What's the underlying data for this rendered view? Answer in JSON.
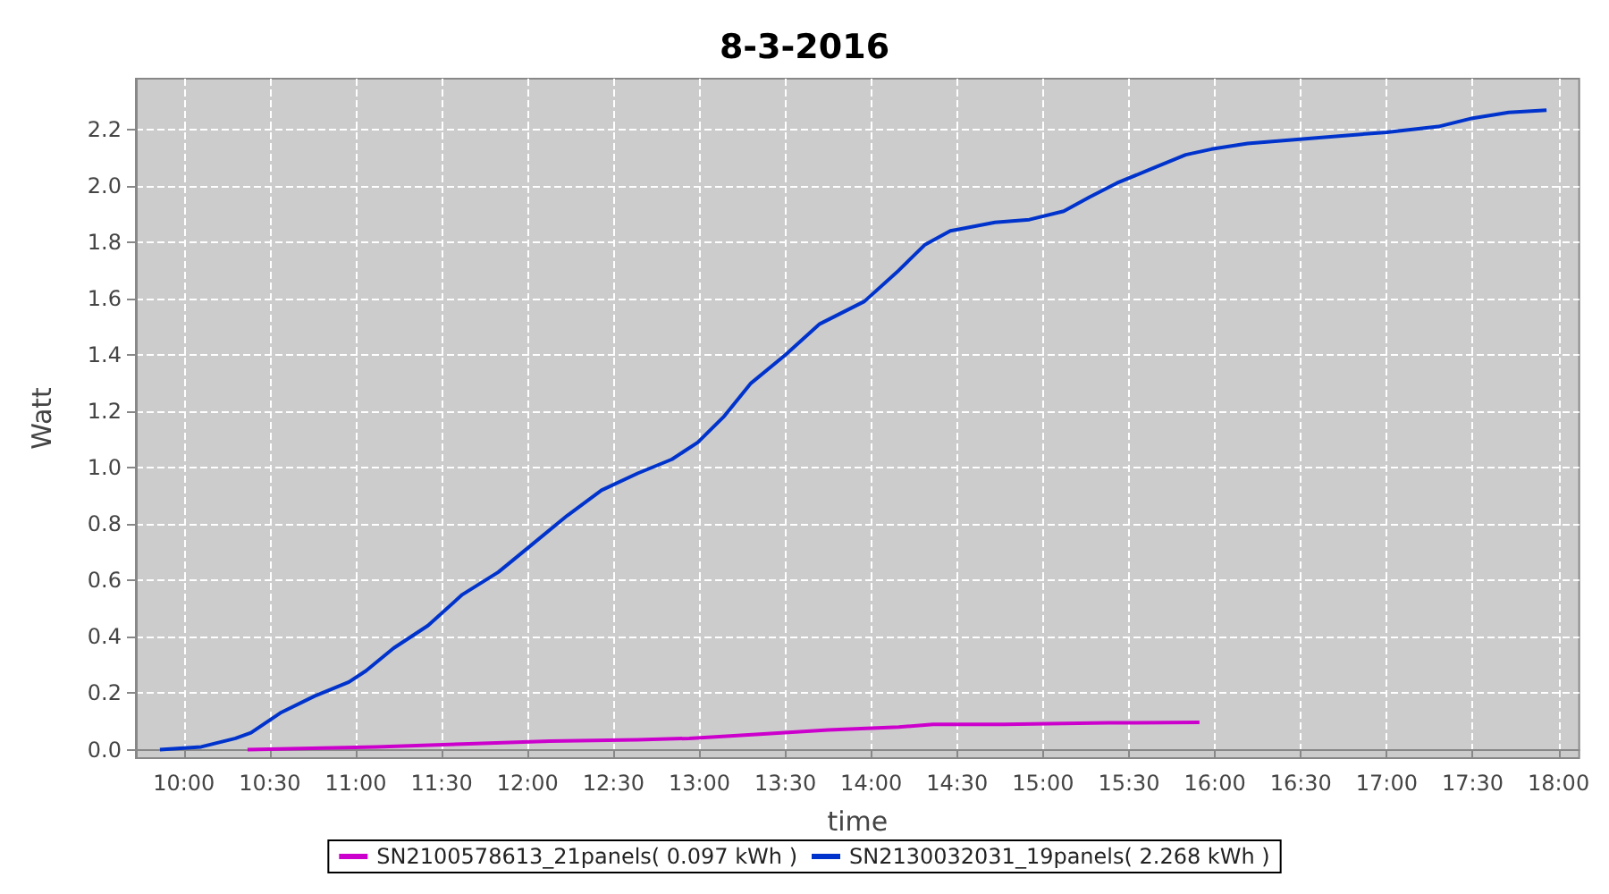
{
  "chart_data": {
    "type": "line",
    "title": "8-3-2016",
    "xlabel": "time",
    "ylabel": "Watt",
    "xlim": [
      9.72,
      18.12
    ],
    "xticks": [
      {
        "value": 10,
        "label": "10:00"
      },
      {
        "value": 10.5,
        "label": "10:30"
      },
      {
        "value": 11,
        "label": "11:00"
      },
      {
        "value": 11.5,
        "label": "11:30"
      },
      {
        "value": 12,
        "label": "12:00"
      },
      {
        "value": 12.5,
        "label": "12:30"
      },
      {
        "value": 13,
        "label": "13:00"
      },
      {
        "value": 13.5,
        "label": "13:30"
      },
      {
        "value": 14,
        "label": "14:00"
      },
      {
        "value": 14.5,
        "label": "14:30"
      },
      {
        "value": 15,
        "label": "15:00"
      },
      {
        "value": 15.5,
        "label": "15:30"
      },
      {
        "value": 16,
        "label": "16:00"
      },
      {
        "value": 16.5,
        "label": "16:30"
      },
      {
        "value": 17,
        "label": "17:00"
      },
      {
        "value": 17.5,
        "label": "17:30"
      },
      {
        "value": 18,
        "label": "18:00"
      }
    ],
    "ylim": [
      -0.03,
      2.38
    ],
    "yticks": [
      {
        "value": 0,
        "label": "0.0"
      },
      {
        "value": 0.2,
        "label": "0.2"
      },
      {
        "value": 0.4,
        "label": "0.4"
      },
      {
        "value": 0.6,
        "label": "0.6"
      },
      {
        "value": 0.8,
        "label": "0.8"
      },
      {
        "value": 1,
        "label": "1.0"
      },
      {
        "value": 1.2,
        "label": "1.2"
      },
      {
        "value": 1.4,
        "label": "1.4"
      },
      {
        "value": 1.6,
        "label": "1.6"
      },
      {
        "value": 1.8,
        "label": "1.8"
      },
      {
        "value": 2,
        "label": "2.0"
      },
      {
        "value": 2.2,
        "label": "2.2"
      }
    ],
    "grid": true,
    "legend": "bottom",
    "marker": "none",
    "line_style": "solid",
    "series": [
      {
        "name": "SN2100578613_21panels( 0.097 kWh )",
        "color": "#cc00cc",
        "x": [
          10.37,
          11.12,
          11.62,
          12.13,
          12.64,
          12.94,
          13.35,
          13.75,
          14.16,
          14.36,
          14.77,
          15.38,
          15.91
        ],
        "values": [
          0,
          0.01,
          0.02,
          0.03,
          0.035,
          0.04,
          0.055,
          0.07,
          0.08,
          0.09,
          0.09,
          0.095,
          0.097
        ]
      },
      {
        "name": "SN2130032031_19panels( 2.268 kWh )",
        "color": "#0033cc",
        "x": [
          9.86,
          10.1,
          10.3,
          10.39,
          10.56,
          10.76,
          10.96,
          11.06,
          11.22,
          11.42,
          11.62,
          11.83,
          12.03,
          12.23,
          12.43,
          12.64,
          12.84,
          12.99,
          13.14,
          13.3,
          13.5,
          13.7,
          13.96,
          14.16,
          14.31,
          14.46,
          14.72,
          14.92,
          15.12,
          15.27,
          15.43,
          15.63,
          15.83,
          15.98,
          16.19,
          16.59,
          17,
          17.3,
          17.5,
          17.71,
          17.93
        ],
        "values": [
          0,
          0.01,
          0.04,
          0.06,
          0.13,
          0.19,
          0.24,
          0.28,
          0.36,
          0.44,
          0.55,
          0.63,
          0.73,
          0.83,
          0.92,
          0.98,
          1.03,
          1.09,
          1.18,
          1.3,
          1.4,
          1.51,
          1.59,
          1.7,
          1.79,
          1.84,
          1.87,
          1.88,
          1.91,
          1.96,
          2.01,
          2.06,
          2.11,
          2.13,
          2.15,
          2.17,
          2.19,
          2.21,
          2.24,
          2.26,
          2.268
        ]
      }
    ]
  }
}
